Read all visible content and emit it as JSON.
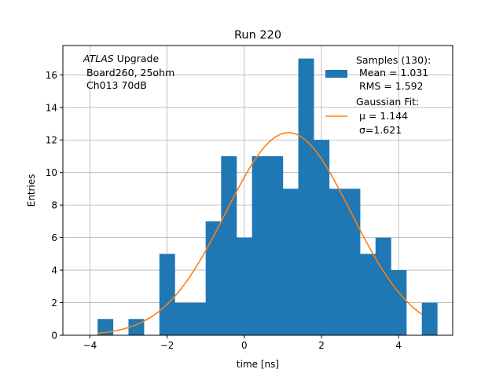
{
  "chart_data": {
    "type": "bar",
    "title": "Run 220",
    "xlabel": "time [ns]",
    "ylabel": "Entries",
    "xlim": [
      -4.7,
      5.4
    ],
    "ylim": [
      0,
      17.8
    ],
    "xticks": [
      -4,
      -2,
      0,
      2,
      4
    ],
    "yticks": [
      0,
      2,
      4,
      6,
      8,
      10,
      12,
      14,
      16
    ],
    "grid": true,
    "histogram": {
      "color": "#1f77b4",
      "bins": [
        {
          "x0": -3.8,
          "x1": -3.4,
          "count": 1
        },
        {
          "x0": -3.4,
          "x1": -3.0,
          "count": 0
        },
        {
          "x0": -3.0,
          "x1": -2.6,
          "count": 1
        },
        {
          "x0": -2.6,
          "x1": -2.2,
          "count": 0
        },
        {
          "x0": -2.2,
          "x1": -1.8,
          "count": 5
        },
        {
          "x0": -1.8,
          "x1": -1.4,
          "count": 2
        },
        {
          "x0": -1.4,
          "x1": -1.0,
          "count": 2
        },
        {
          "x0": -1.0,
          "x1": -0.6,
          "count": 7
        },
        {
          "x0": -0.6,
          "x1": -0.2,
          "count": 11
        },
        {
          "x0": -0.2,
          "x1": 0.2,
          "count": 6
        },
        {
          "x0": 0.2,
          "x1": 0.6,
          "count": 11
        },
        {
          "x0": 0.6,
          "x1": 1.0,
          "count": 11
        },
        {
          "x0": 1.0,
          "x1": 1.4,
          "count": 9
        },
        {
          "x0": 1.4,
          "x1": 1.8,
          "count": 17
        },
        {
          "x0": 1.8,
          "x1": 2.2,
          "count": 12
        },
        {
          "x0": 2.2,
          "x1": 2.6,
          "count": 9
        },
        {
          "x0": 2.6,
          "x1": 3.0,
          "count": 9
        },
        {
          "x0": 3.0,
          "x1": 3.4,
          "count": 5
        },
        {
          "x0": 3.4,
          "x1": 3.8,
          "count": 6
        },
        {
          "x0": 3.8,
          "x1": 4.2,
          "count": 4
        },
        {
          "x0": 4.2,
          "x1": 4.6,
          "count": 0
        },
        {
          "x0": 4.6,
          "x1": 5.0,
          "count": 2
        }
      ]
    },
    "fit": {
      "color": "#ff7f0e",
      "mu": 1.144,
      "sigma": 1.621,
      "amplitude": 12.45,
      "x_range": [
        -3.8,
        4.6
      ]
    },
    "annotation": {
      "line1_italic": "ATLAS",
      "line1_rest": " Upgrade",
      "line2": " Board260, 25ohm",
      "line3": " Ch013 70dB"
    },
    "legend": {
      "position": "upper-right",
      "hist_lines": [
        "Samples (130):",
        " Mean = 1.031",
        " RMS = 1.592"
      ],
      "fit_lines": [
        "Gaussian Fit:",
        " μ = 1.144",
        " σ=1.621"
      ]
    }
  }
}
